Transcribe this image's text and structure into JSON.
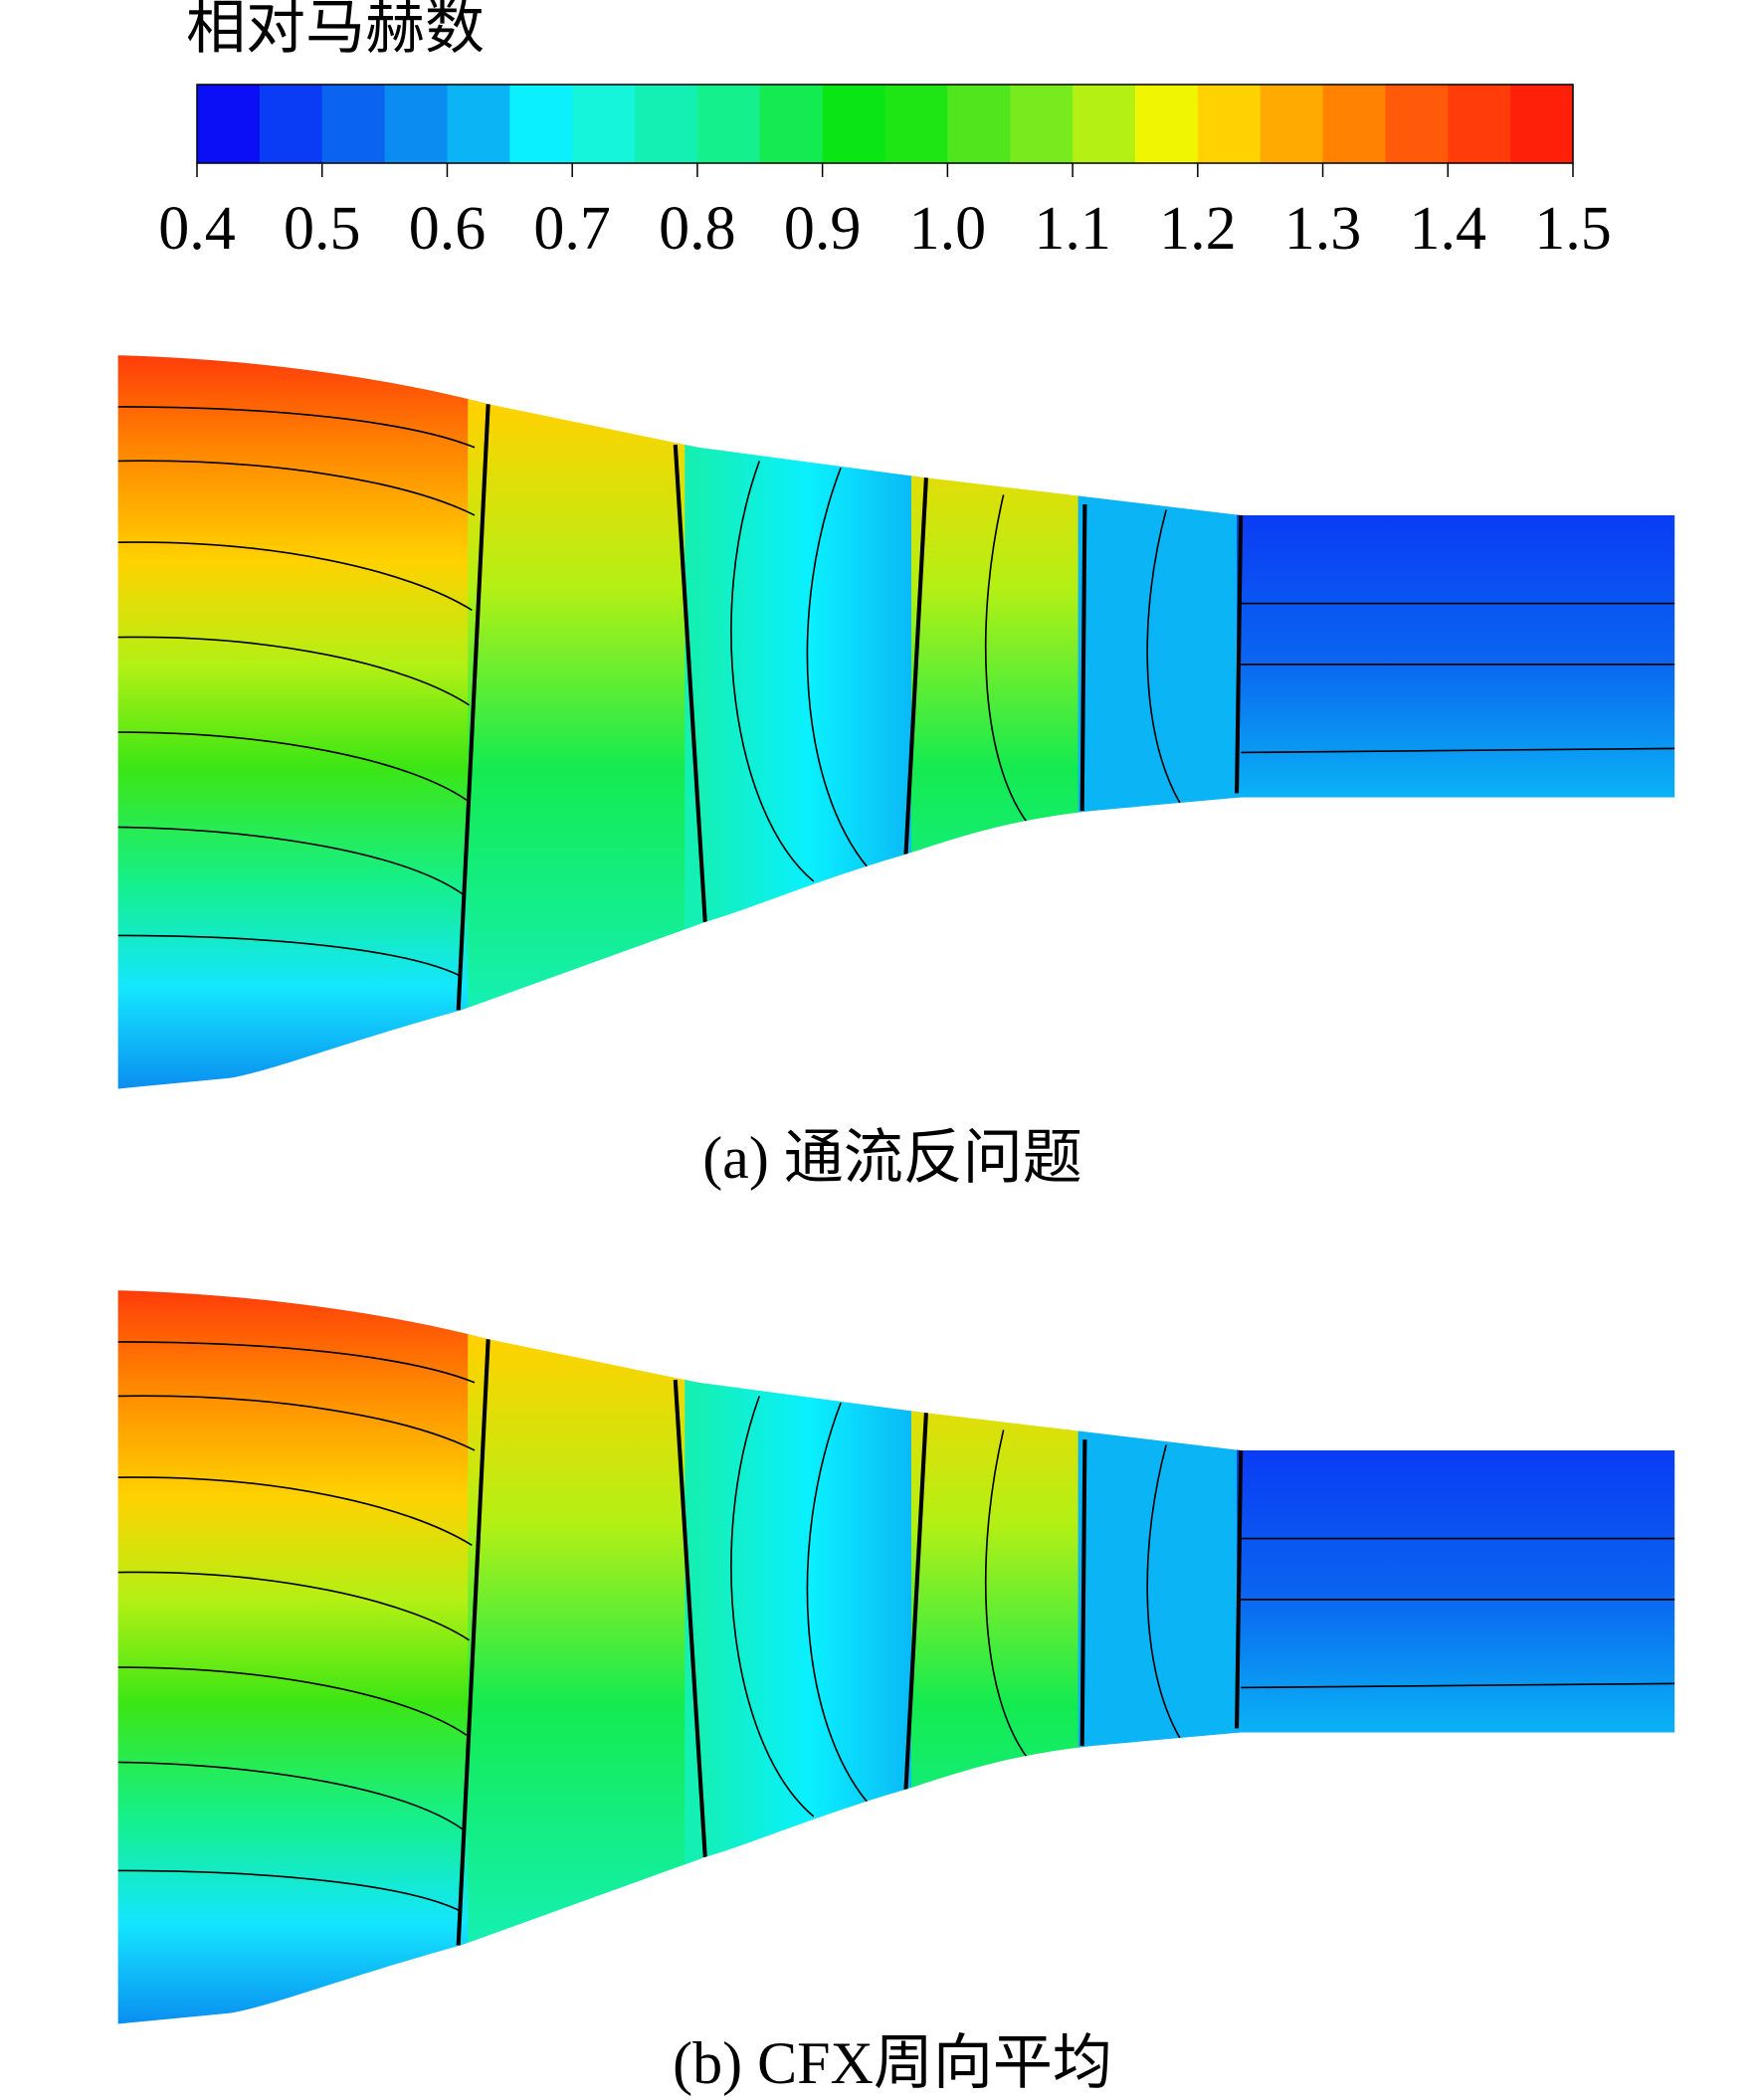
{
  "chart_data": {
    "type": "contour",
    "title": "相对马赫数",
    "colorbar": {
      "clim": [
        0.4,
        1.5
      ],
      "colors": [
        "#0a0ff5",
        "#0a3cf5",
        "#0a64f0",
        "#0a8cf0",
        "#0ab4f5",
        "#0af0ff",
        "#14f5dc",
        "#14f0b4",
        "#14f08c",
        "#14eb50",
        "#0ae614",
        "#1ee614",
        "#50e61e",
        "#78eb1e",
        "#b4f014",
        "#f0f500",
        "#ffd200",
        "#ffaa00",
        "#ff8200",
        "#ff5a0a",
        "#ff3c0a",
        "#ff200a"
      ],
      "ticks": [
        0.4,
        0.5,
        0.6,
        0.7,
        0.8,
        0.9,
        {
          "value": 1,
          "label": "1.0"
        },
        1.1,
        1.2,
        1.3,
        1.4,
        1.5
      ]
    },
    "panels": [
      {
        "caption": "(a) 通流反问题"
      },
      {
        "caption": "(b) CFX周向平均"
      }
    ]
  }
}
